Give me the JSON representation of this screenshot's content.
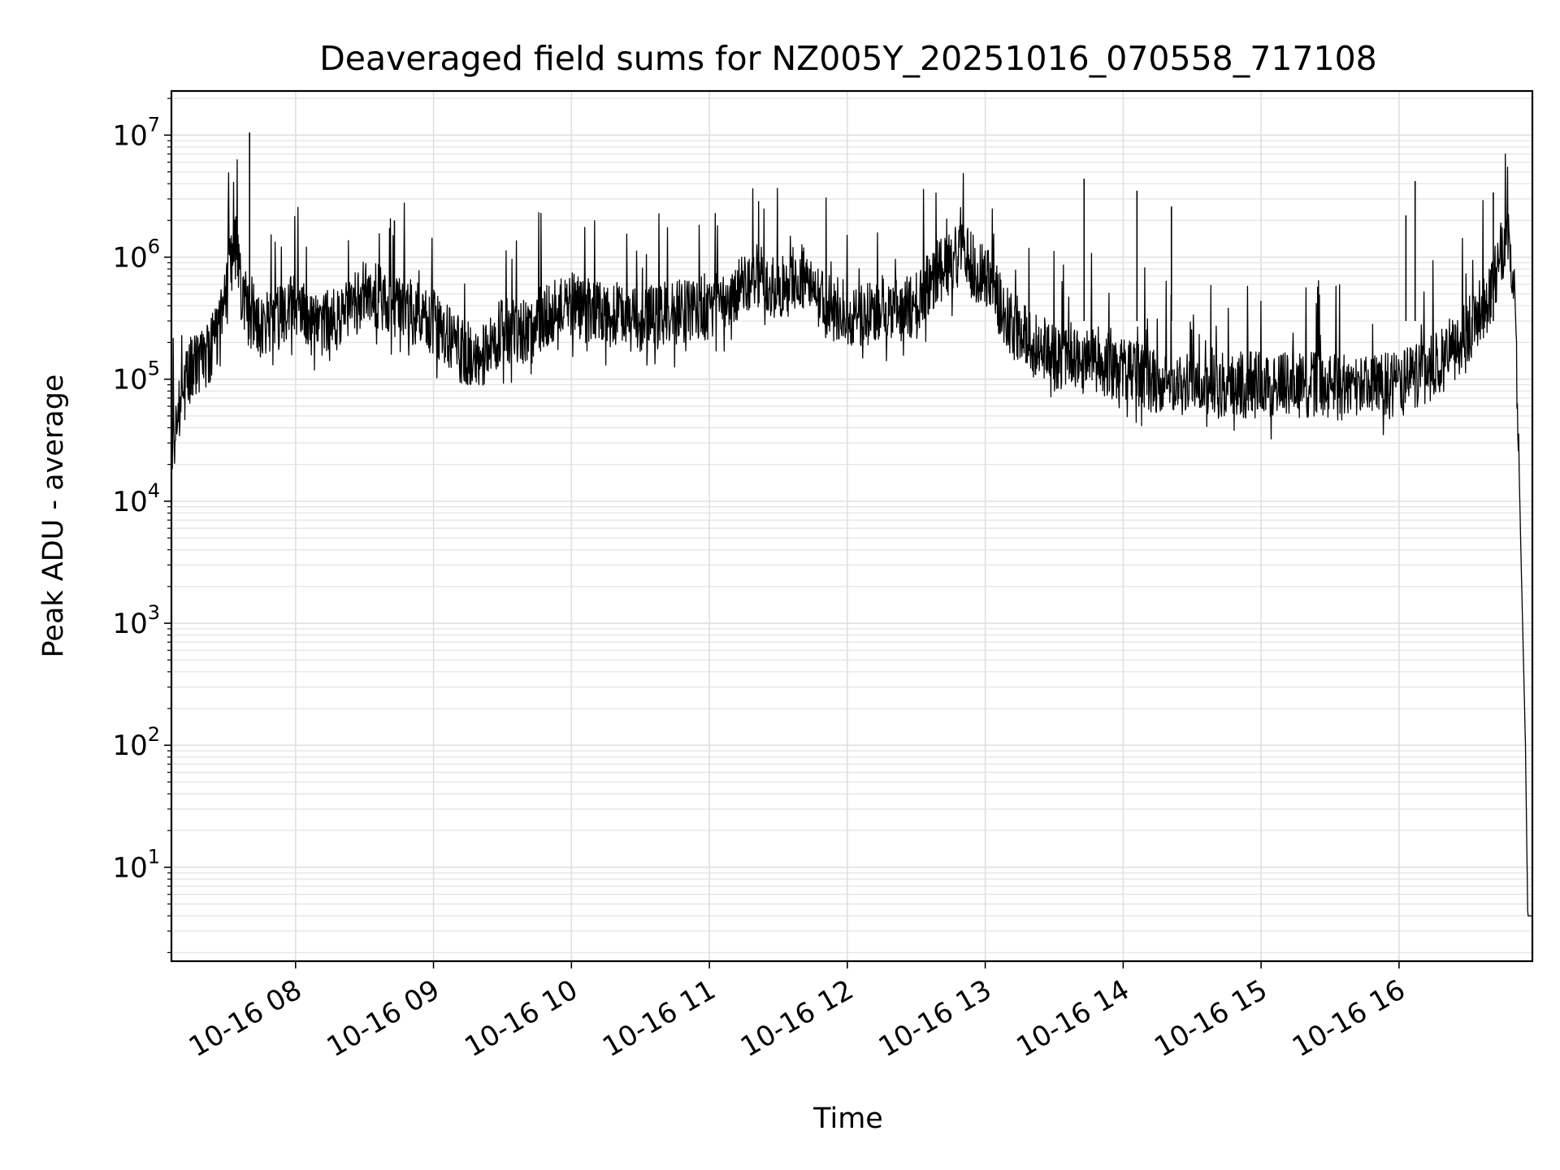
{
  "chart_data": {
    "type": "line",
    "title": "Deaveraged field sums for NZ005Y_20251016_070558_717108",
    "xlabel": "Time",
    "ylabel": "Peak ADU - average",
    "yscale": "log",
    "grid": true,
    "legend": "none",
    "xlim": [
      "2025-10-16 07:06",
      "2025-10-16 16:58"
    ],
    "ylim": [
      1.7,
      23000000
    ],
    "x_ticks": [
      {
        "value": "2025-10-16 08:00",
        "label": "10-16 08"
      },
      {
        "value": "2025-10-16 09:00",
        "label": "10-16 09"
      },
      {
        "value": "2025-10-16 10:00",
        "label": "10-16 10"
      },
      {
        "value": "2025-10-16 11:00",
        "label": "10-16 11"
      },
      {
        "value": "2025-10-16 12:00",
        "label": "10-16 12"
      },
      {
        "value": "2025-10-16 13:00",
        "label": "10-16 13"
      },
      {
        "value": "2025-10-16 14:00",
        "label": "10-16 14"
      },
      {
        "value": "2025-10-16 15:00",
        "label": "10-16 15"
      },
      {
        "value": "2025-10-16 16:00",
        "label": "10-16 16"
      }
    ],
    "y_ticks": [
      {
        "value": 10,
        "base": "10",
        "exp": "1"
      },
      {
        "value": 100,
        "base": "10",
        "exp": "2"
      },
      {
        "value": 1000,
        "base": "10",
        "exp": "3"
      },
      {
        "value": 10000,
        "base": "10",
        "exp": "4"
      },
      {
        "value": 100000,
        "base": "10",
        "exp": "5"
      },
      {
        "value": 1000000,
        "base": "10",
        "exp": "6"
      },
      {
        "value": 10000000,
        "base": "10",
        "exp": "7"
      }
    ],
    "series": [
      {
        "color": "#000000",
        "note_points": "baseline envelope of a dense noisy trace; spikes listed separately",
        "x": [
          "2025-10-16 07:06",
          "2025-10-16 07:10",
          "2025-10-16 07:15",
          "2025-10-16 07:20",
          "2025-10-16 07:25",
          "2025-10-16 07:30",
          "2025-10-16 07:33",
          "2025-10-16 07:36",
          "2025-10-16 07:40",
          "2025-10-16 07:45",
          "2025-10-16 07:50",
          "2025-10-16 07:55",
          "2025-10-16 08:00",
          "2025-10-16 08:10",
          "2025-10-16 08:20",
          "2025-10-16 08:30",
          "2025-10-16 08:40",
          "2025-10-16 08:50",
          "2025-10-16 09:00",
          "2025-10-16 09:10",
          "2025-10-16 09:20",
          "2025-10-16 09:30",
          "2025-10-16 09:40",
          "2025-10-16 09:50",
          "2025-10-16 10:00",
          "2025-10-16 10:15",
          "2025-10-16 10:30",
          "2025-10-16 10:45",
          "2025-10-16 11:00",
          "2025-10-16 11:10",
          "2025-10-16 11:20",
          "2025-10-16 11:30",
          "2025-10-16 11:40",
          "2025-10-16 11:50",
          "2025-10-16 12:00",
          "2025-10-16 12:10",
          "2025-10-16 12:20",
          "2025-10-16 12:30",
          "2025-10-16 12:40",
          "2025-10-16 12:50",
          "2025-10-16 13:00",
          "2025-10-16 13:10",
          "2025-10-16 13:20",
          "2025-10-16 13:30",
          "2025-10-16 13:45",
          "2025-10-16 14:00",
          "2025-10-16 14:20",
          "2025-10-16 14:40",
          "2025-10-16 15:00",
          "2025-10-16 15:20",
          "2025-10-16 15:40",
          "2025-10-16 16:00",
          "2025-10-16 16:10",
          "2025-10-16 16:20",
          "2025-10-16 16:30",
          "2025-10-16 16:40",
          "2025-10-16 16:45",
          "2025-10-16 16:48",
          "2025-10-16 16:50",
          "2025-10-16 16:52",
          "2025-10-16 16:53",
          "2025-10-16 16:55",
          "2025-10-16 16:56",
          "2025-10-16 16:57",
          "2025-10-16 16:58"
        ],
        "y": [
          25000,
          70000,
          120000,
          150000,
          200000,
          600000,
          1600000,
          600000,
          300000,
          250000,
          300000,
          350000,
          400000,
          250000,
          350000,
          500000,
          450000,
          350000,
          300000,
          180000,
          150000,
          250000,
          250000,
          350000,
          400000,
          350000,
          300000,
          350000,
          400000,
          450000,
          700000,
          550000,
          700000,
          400000,
          350000,
          350000,
          350000,
          400000,
          800000,
          1000000,
          700000,
          300000,
          200000,
          150000,
          150000,
          120000,
          90000,
          90000,
          90000,
          90000,
          85000,
          90000,
          110000,
          150000,
          250000,
          500000,
          1200000,
          1400000,
          600000,
          30000,
          4000,
          100,
          4,
          4,
          4
        ]
      }
    ],
    "spikes": [
      {
        "x": "2025-10-16 07:40",
        "y": 10500000
      },
      {
        "x": "2025-10-16 08:43",
        "y": 2000000
      },
      {
        "x": "2025-10-16 13:43",
        "y": 4400000
      },
      {
        "x": "2025-10-16 14:06",
        "y": 3500000
      },
      {
        "x": "2025-10-16 14:21",
        "y": 2600000
      },
      {
        "x": "2025-10-16 16:03",
        "y": 2200000
      },
      {
        "x": "2025-10-16 16:07",
        "y": 4200000
      },
      {
        "x": "2025-10-16 16:41",
        "y": 3400000
      }
    ]
  }
}
